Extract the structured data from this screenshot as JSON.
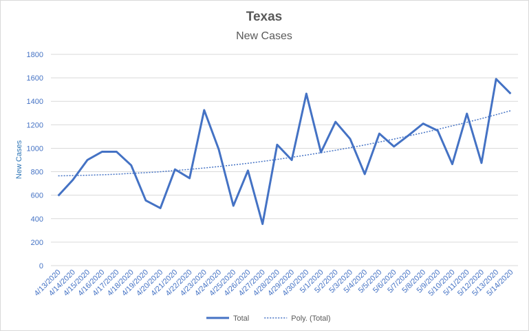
{
  "chart_data": {
    "type": "line",
    "title": "Texas",
    "subtitle": "New Cases",
    "y_label": "New Cases",
    "x": [
      "4/13/2020",
      "4/14/2020",
      "4/15/2020",
      "4/16/2020",
      "4/17/2020",
      "4/18/2020",
      "4/19/2020",
      "4/20/2020",
      "4/21/2020",
      "4/22/2020",
      "4/23/2020",
      "4/24/2020",
      "4/25/2020",
      "4/26/2020",
      "4/27/2020",
      "4/28/2020",
      "4/29/2020",
      "4/30/2020",
      "5/1/2020",
      "5/2/2020",
      "5/3/2020",
      "5/4/2020",
      "5/5/2020",
      "5/6/2020",
      "5/7/2020",
      "5/8/2020",
      "5/9/2020",
      "5/10/2020",
      "5/11/2020",
      "5/12/2020",
      "5/13/2020",
      "5/14/2020"
    ],
    "series": [
      {
        "name": "Total",
        "color": "#4472c4",
        "style": "solid",
        "values": [
          595,
          730,
          900,
          970,
          970,
          855,
          555,
          490,
          820,
          745,
          1325,
          990,
          510,
          810,
          355,
          1030,
          900,
          1465,
          965,
          1225,
          1080,
          780,
          1125,
          1015,
          1110,
          1210,
          1150,
          865,
          1295,
          875,
          1590,
          1465
        ]
      },
      {
        "name": "Poly. (Total)",
        "color": "#4472c4",
        "style": "dotted",
        "values": [
          765,
          767,
          770,
          774,
          779,
          786,
          792,
          800,
          810,
          820,
          832,
          844,
          858,
          872,
          888,
          905,
          923,
          942,
          962,
          983,
          1005,
          1028,
          1053,
          1078,
          1105,
          1132,
          1161,
          1191,
          1221,
          1253,
          1286,
          1320
        ]
      }
    ],
    "ylim": [
      0,
      1800
    ],
    "yticks": [
      0,
      200,
      400,
      600,
      800,
      1000,
      1200,
      1400,
      1600,
      1800
    ],
    "grid": true,
    "legend": "bottom"
  }
}
